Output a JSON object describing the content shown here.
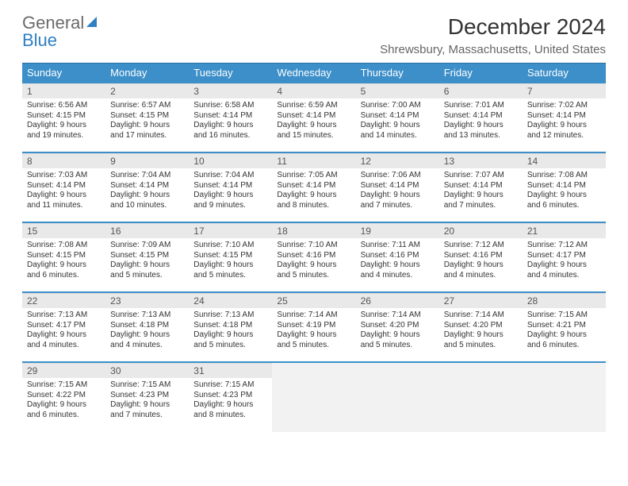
{
  "logo": {
    "general": "General",
    "blue": "Blue"
  },
  "title": "December 2024",
  "subtitle": "Shrewsbury, Massachusetts, United States",
  "colors": {
    "header_bg": "#3c8fc9",
    "header_text": "#ffffff",
    "row_border": "#3c8fc9",
    "daynum_bg": "#e9e9e9",
    "logo_blue": "#2f7fc3"
  },
  "weekdays": [
    "Sunday",
    "Monday",
    "Tuesday",
    "Wednesday",
    "Thursday",
    "Friday",
    "Saturday"
  ],
  "weeks": [
    [
      {
        "n": "1",
        "sunrise": "6:56 AM",
        "sunset": "4:15 PM",
        "dl": "9 hours and 19 minutes."
      },
      {
        "n": "2",
        "sunrise": "6:57 AM",
        "sunset": "4:15 PM",
        "dl": "9 hours and 17 minutes."
      },
      {
        "n": "3",
        "sunrise": "6:58 AM",
        "sunset": "4:14 PM",
        "dl": "9 hours and 16 minutes."
      },
      {
        "n": "4",
        "sunrise": "6:59 AM",
        "sunset": "4:14 PM",
        "dl": "9 hours and 15 minutes."
      },
      {
        "n": "5",
        "sunrise": "7:00 AM",
        "sunset": "4:14 PM",
        "dl": "9 hours and 14 minutes."
      },
      {
        "n": "6",
        "sunrise": "7:01 AM",
        "sunset": "4:14 PM",
        "dl": "9 hours and 13 minutes."
      },
      {
        "n": "7",
        "sunrise": "7:02 AM",
        "sunset": "4:14 PM",
        "dl": "9 hours and 12 minutes."
      }
    ],
    [
      {
        "n": "8",
        "sunrise": "7:03 AM",
        "sunset": "4:14 PM",
        "dl": "9 hours and 11 minutes."
      },
      {
        "n": "9",
        "sunrise": "7:04 AM",
        "sunset": "4:14 PM",
        "dl": "9 hours and 10 minutes."
      },
      {
        "n": "10",
        "sunrise": "7:04 AM",
        "sunset": "4:14 PM",
        "dl": "9 hours and 9 minutes."
      },
      {
        "n": "11",
        "sunrise": "7:05 AM",
        "sunset": "4:14 PM",
        "dl": "9 hours and 8 minutes."
      },
      {
        "n": "12",
        "sunrise": "7:06 AM",
        "sunset": "4:14 PM",
        "dl": "9 hours and 7 minutes."
      },
      {
        "n": "13",
        "sunrise": "7:07 AM",
        "sunset": "4:14 PM",
        "dl": "9 hours and 7 minutes."
      },
      {
        "n": "14",
        "sunrise": "7:08 AM",
        "sunset": "4:14 PM",
        "dl": "9 hours and 6 minutes."
      }
    ],
    [
      {
        "n": "15",
        "sunrise": "7:08 AM",
        "sunset": "4:15 PM",
        "dl": "9 hours and 6 minutes."
      },
      {
        "n": "16",
        "sunrise": "7:09 AM",
        "sunset": "4:15 PM",
        "dl": "9 hours and 5 minutes."
      },
      {
        "n": "17",
        "sunrise": "7:10 AM",
        "sunset": "4:15 PM",
        "dl": "9 hours and 5 minutes."
      },
      {
        "n": "18",
        "sunrise": "7:10 AM",
        "sunset": "4:16 PM",
        "dl": "9 hours and 5 minutes."
      },
      {
        "n": "19",
        "sunrise": "7:11 AM",
        "sunset": "4:16 PM",
        "dl": "9 hours and 4 minutes."
      },
      {
        "n": "20",
        "sunrise": "7:12 AM",
        "sunset": "4:16 PM",
        "dl": "9 hours and 4 minutes."
      },
      {
        "n": "21",
        "sunrise": "7:12 AM",
        "sunset": "4:17 PM",
        "dl": "9 hours and 4 minutes."
      }
    ],
    [
      {
        "n": "22",
        "sunrise": "7:13 AM",
        "sunset": "4:17 PM",
        "dl": "9 hours and 4 minutes."
      },
      {
        "n": "23",
        "sunrise": "7:13 AM",
        "sunset": "4:18 PM",
        "dl": "9 hours and 4 minutes."
      },
      {
        "n": "24",
        "sunrise": "7:13 AM",
        "sunset": "4:18 PM",
        "dl": "9 hours and 5 minutes."
      },
      {
        "n": "25",
        "sunrise": "7:14 AM",
        "sunset": "4:19 PM",
        "dl": "9 hours and 5 minutes."
      },
      {
        "n": "26",
        "sunrise": "7:14 AM",
        "sunset": "4:20 PM",
        "dl": "9 hours and 5 minutes."
      },
      {
        "n": "27",
        "sunrise": "7:14 AM",
        "sunset": "4:20 PM",
        "dl": "9 hours and 5 minutes."
      },
      {
        "n": "28",
        "sunrise": "7:15 AM",
        "sunset": "4:21 PM",
        "dl": "9 hours and 6 minutes."
      }
    ],
    [
      {
        "n": "29",
        "sunrise": "7:15 AM",
        "sunset": "4:22 PM",
        "dl": "9 hours and 6 minutes."
      },
      {
        "n": "30",
        "sunrise": "7:15 AM",
        "sunset": "4:23 PM",
        "dl": "9 hours and 7 minutes."
      },
      {
        "n": "31",
        "sunrise": "7:15 AM",
        "sunset": "4:23 PM",
        "dl": "9 hours and 8 minutes."
      },
      null,
      null,
      null,
      null
    ]
  ],
  "labels": {
    "sunrise": "Sunrise:",
    "sunset": "Sunset:",
    "daylight": "Daylight:"
  }
}
